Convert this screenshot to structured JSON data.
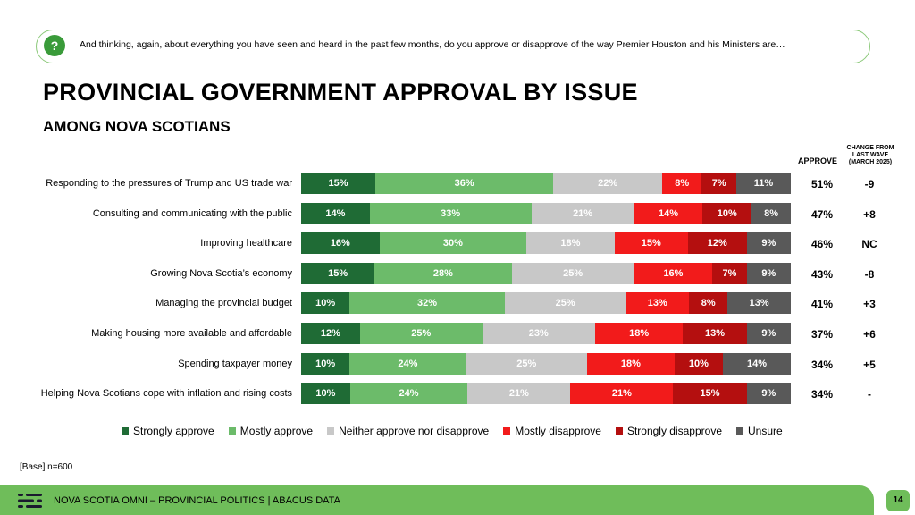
{
  "question": "And thinking, again, about everything you have seen and heard in the past few months, do you approve or disapprove of the way Premier Houston and his Ministers are…",
  "title": "PROVINCIAL GOVERNMENT APPROVAL BY ISSUE",
  "subtitle": "AMONG NOVA SCOTIANS",
  "col_approve": "APPROVE",
  "col_change": [
    "CHANGE FROM",
    "LAST WAVE",
    "(MARCH 2025)"
  ],
  "colors": {
    "strongly_approve": "#1f6b35",
    "mostly_approve": "#6cbb6a",
    "neither": "#c8c8c8",
    "mostly_disapprove": "#f21b1b",
    "strongly_disapprove": "#b40f0f",
    "unsure": "#595959"
  },
  "chart_data": {
    "type": "bar",
    "stacked": true,
    "orientation": "horizontal",
    "categories": [
      "Responding to the pressures of Trump and US trade war",
      "Consulting and communicating with the public",
      "Improving healthcare",
      "Growing Nova Scotia’s economy",
      "Managing the provincial budget",
      "Making housing more available and affordable",
      "Spending taxpayer money",
      "Helping Nova Scotians cope with inflation and rising costs"
    ],
    "series": [
      {
        "name": "Strongly approve",
        "key": "strongly_approve",
        "values": [
          15,
          14,
          16,
          15,
          10,
          12,
          10,
          10
        ]
      },
      {
        "name": "Mostly approve",
        "key": "mostly_approve",
        "values": [
          36,
          33,
          30,
          28,
          32,
          25,
          24,
          24
        ]
      },
      {
        "name": "Neither approve nor disapprove",
        "key": "neither",
        "values": [
          22,
          21,
          18,
          25,
          25,
          23,
          25,
          21
        ]
      },
      {
        "name": "Mostly disapprove",
        "key": "mostly_disapprove",
        "values": [
          8,
          14,
          15,
          16,
          13,
          18,
          18,
          21
        ]
      },
      {
        "name": "Strongly disapprove",
        "key": "strongly_disapprove",
        "values": [
          7,
          10,
          12,
          7,
          8,
          13,
          10,
          15
        ]
      },
      {
        "name": "Unsure",
        "key": "unsure",
        "values": [
          11,
          8,
          9,
          9,
          13,
          9,
          14,
          9
        ]
      }
    ],
    "approve": [
      "51%",
      "47%",
      "46%",
      "43%",
      "41%",
      "37%",
      "34%",
      "34%"
    ],
    "change": [
      "-9",
      "+8",
      "NC",
      "-8",
      "+3",
      "+6",
      "+5",
      "-"
    ],
    "legend_position": "bottom"
  },
  "base": "[Base] n=600",
  "footer": "NOVA SCOTIA OMNI – PROVINCIAL POLITICS  |  ABACUS DATA",
  "page": "14"
}
